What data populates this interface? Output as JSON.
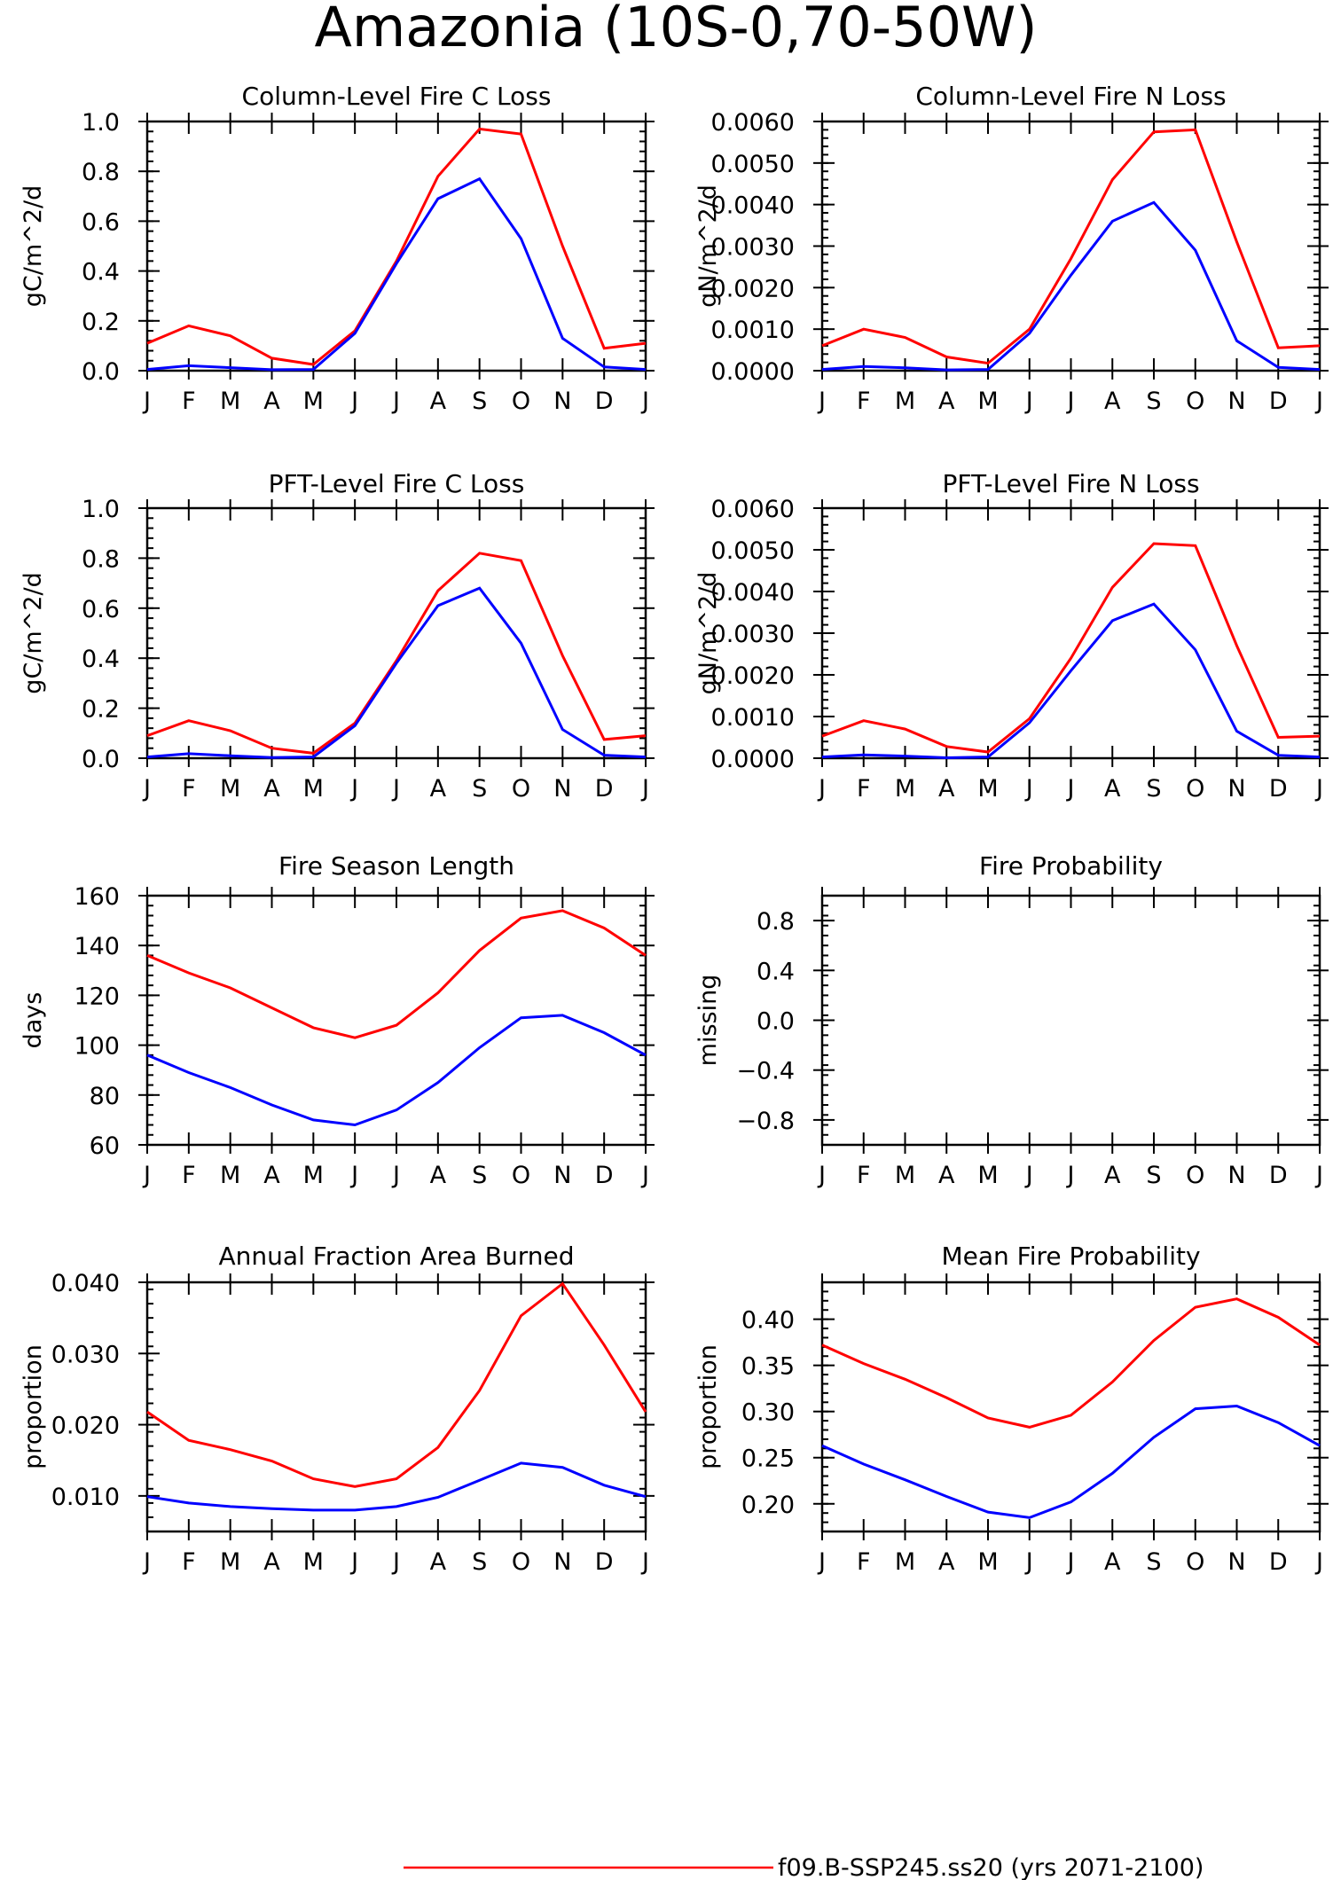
{
  "figure_title": "Amazonia (10S-0,70-50W)",
  "colors": {
    "series_red": "#ff0000",
    "series_blue": "#0000ff",
    "axes": "#000000"
  },
  "legend": [
    {
      "label": "f09.B-SSP245.ss20 (yrs 2071-2100)",
      "color": "#ff0000"
    }
  ],
  "chart_data": [
    {
      "type": "line",
      "title": "Column-Level Fire C Loss",
      "ylabel": "gC/m^2/d",
      "categories": [
        "J",
        "F",
        "M",
        "A",
        "M",
        "J",
        "J",
        "A",
        "S",
        "O",
        "N",
        "D",
        "J"
      ],
      "ylim": [
        0,
        1.0
      ],
      "yticks": [
        0.0,
        0.2,
        0.4,
        0.6,
        0.8,
        1.0
      ],
      "ytick_labels": [
        "0.0",
        "0.2",
        "0.4",
        "0.6",
        "0.8",
        "1.0"
      ],
      "series": [
        {
          "color": "#ff0000",
          "values": [
            0.11,
            0.18,
            0.14,
            0.05,
            0.025,
            0.16,
            0.44,
            0.78,
            0.97,
            0.95,
            0.5,
            0.09,
            0.11
          ]
        },
        {
          "color": "#0000ff",
          "values": [
            0.005,
            0.02,
            0.012,
            0.004,
            0.005,
            0.15,
            0.43,
            0.69,
            0.77,
            0.53,
            0.13,
            0.015,
            0.005
          ]
        }
      ]
    },
    {
      "type": "line",
      "title": "Column-Level Fire N Loss",
      "ylabel": "gN/m^2/d",
      "categories": [
        "J",
        "F",
        "M",
        "A",
        "M",
        "J",
        "J",
        "A",
        "S",
        "O",
        "N",
        "D",
        "J"
      ],
      "ylim": [
        0,
        0.006
      ],
      "yticks": [
        0,
        0.001,
        0.002,
        0.003,
        0.004,
        0.005,
        0.006
      ],
      "ytick_labels": [
        "0.0000",
        "0.0010",
        "0.0020",
        "0.0030",
        "0.0040",
        "0.0050",
        "0.0060"
      ],
      "series": [
        {
          "color": "#ff0000",
          "values": [
            0.0006,
            0.001,
            0.0008,
            0.00033,
            0.00018,
            0.001,
            0.0027,
            0.0046,
            0.00575,
            0.0058,
            0.0031,
            0.00055,
            0.0006
          ]
        },
        {
          "color": "#0000ff",
          "values": [
            3e-05,
            0.0001,
            7e-05,
            2e-05,
            3e-05,
            0.0009,
            0.0023,
            0.0036,
            0.00405,
            0.0029,
            0.00072,
            8e-05,
            3e-05
          ]
        }
      ]
    },
    {
      "type": "line",
      "title": "PFT-Level Fire C Loss",
      "ylabel": "gC/m^2/d",
      "categories": [
        "J",
        "F",
        "M",
        "A",
        "M",
        "J",
        "J",
        "A",
        "S",
        "O",
        "N",
        "D",
        "J"
      ],
      "ylim": [
        0,
        1.0
      ],
      "yticks": [
        0.0,
        0.2,
        0.4,
        0.6,
        0.8,
        1.0
      ],
      "ytick_labels": [
        "0.0",
        "0.2",
        "0.4",
        "0.6",
        "0.8",
        "1.0"
      ],
      "series": [
        {
          "color": "#ff0000",
          "values": [
            0.09,
            0.15,
            0.11,
            0.04,
            0.02,
            0.14,
            0.39,
            0.67,
            0.82,
            0.79,
            0.41,
            0.075,
            0.09
          ]
        },
        {
          "color": "#0000ff",
          "values": [
            0.005,
            0.018,
            0.01,
            0.003,
            0.005,
            0.13,
            0.38,
            0.61,
            0.68,
            0.46,
            0.115,
            0.012,
            0.005
          ]
        }
      ]
    },
    {
      "type": "line",
      "title": "PFT-Level Fire N Loss",
      "ylabel": "gN/m^2/d",
      "categories": [
        "J",
        "F",
        "M",
        "A",
        "M",
        "J",
        "J",
        "A",
        "S",
        "O",
        "N",
        "D",
        "J"
      ],
      "ylim": [
        0,
        0.006
      ],
      "yticks": [
        0,
        0.001,
        0.002,
        0.003,
        0.004,
        0.005,
        0.006
      ],
      "ytick_labels": [
        "0.0000",
        "0.0010",
        "0.0020",
        "0.0030",
        "0.0040",
        "0.0050",
        "0.0060"
      ],
      "series": [
        {
          "color": "#ff0000",
          "values": [
            0.00053,
            0.0009,
            0.0007,
            0.00028,
            0.00015,
            0.00095,
            0.0024,
            0.0041,
            0.00515,
            0.0051,
            0.0027,
            0.0005,
            0.00053
          ]
        },
        {
          "color": "#0000ff",
          "values": [
            3e-05,
            8e-05,
            5e-05,
            1e-05,
            3e-05,
            0.00085,
            0.0021,
            0.0033,
            0.0037,
            0.0026,
            0.00065,
            7e-05,
            3e-05
          ]
        }
      ]
    },
    {
      "type": "line",
      "title": "Fire Season Length",
      "ylabel": "days",
      "categories": [
        "J",
        "F",
        "M",
        "A",
        "M",
        "J",
        "J",
        "A",
        "S",
        "O",
        "N",
        "D",
        "J"
      ],
      "ylim": [
        60,
        160
      ],
      "yticks": [
        60,
        80,
        100,
        120,
        140,
        160
      ],
      "ytick_labels": [
        "60",
        "80",
        "100",
        "120",
        "140",
        "160"
      ],
      "series": [
        {
          "color": "#ff0000",
          "values": [
            136,
            129,
            123,
            115,
            107,
            103,
            108,
            121,
            138,
            151,
            154,
            147,
            136
          ]
        },
        {
          "color": "#0000ff",
          "values": [
            96,
            89,
            83,
            76,
            70,
            68,
            74,
            85,
            99,
            111,
            112,
            105,
            96
          ]
        }
      ]
    },
    {
      "type": "line",
      "title": "Fire Probability",
      "ylabel": "missing",
      "categories": [
        "J",
        "F",
        "M",
        "A",
        "M",
        "J",
        "J",
        "A",
        "S",
        "O",
        "N",
        "D",
        "J"
      ],
      "ylim": [
        -1.0,
        1.0
      ],
      "yticks": [
        -0.8,
        -0.4,
        0.0,
        0.4,
        0.8
      ],
      "ytick_labels": [
        "−0.8",
        "−0.4",
        "0.0",
        "0.4",
        "0.8"
      ],
      "series": []
    },
    {
      "type": "line",
      "title": "Annual Fraction Area Burned",
      "ylabel": "proportion",
      "categories": [
        "J",
        "F",
        "M",
        "A",
        "M",
        "J",
        "J",
        "A",
        "S",
        "O",
        "N",
        "D",
        "J"
      ],
      "ylim": [
        0.005,
        0.04
      ],
      "yticks": [
        0.01,
        0.02,
        0.03,
        0.04
      ],
      "ytick_labels": [
        "0.010",
        "0.020",
        "0.030",
        "0.040"
      ],
      "series": [
        {
          "color": "#ff0000",
          "values": [
            0.0218,
            0.0178,
            0.0165,
            0.0149,
            0.0124,
            0.0113,
            0.0124,
            0.0168,
            0.0248,
            0.0353,
            0.0398,
            0.0312,
            0.0218
          ]
        },
        {
          "color": "#0000ff",
          "values": [
            0.0099,
            0.009,
            0.0085,
            0.0082,
            0.008,
            0.008,
            0.0085,
            0.0098,
            0.0122,
            0.0146,
            0.014,
            0.0115,
            0.0099
          ]
        }
      ]
    },
    {
      "type": "line",
      "title": "Mean Fire Probability",
      "ylabel": "proportion",
      "categories": [
        "J",
        "F",
        "M",
        "A",
        "M",
        "J",
        "J",
        "A",
        "S",
        "O",
        "N",
        "D",
        "J"
      ],
      "ylim": [
        0.17,
        0.44
      ],
      "yticks": [
        0.2,
        0.25,
        0.3,
        0.35,
        0.4
      ],
      "ytick_labels": [
        "0.20",
        "0.25",
        "0.30",
        "0.35",
        "0.40"
      ],
      "series": [
        {
          "color": "#ff0000",
          "values": [
            0.372,
            0.352,
            0.335,
            0.315,
            0.293,
            0.283,
            0.296,
            0.332,
            0.377,
            0.413,
            0.422,
            0.402,
            0.372
          ]
        },
        {
          "color": "#0000ff",
          "values": [
            0.263,
            0.243,
            0.226,
            0.208,
            0.191,
            0.185,
            0.202,
            0.233,
            0.272,
            0.303,
            0.306,
            0.288,
            0.263
          ]
        }
      ]
    }
  ]
}
